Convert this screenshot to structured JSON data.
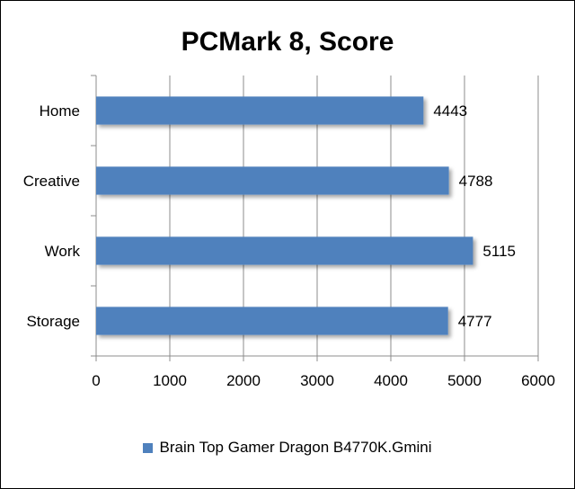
{
  "chart_data": {
    "type": "bar",
    "orientation": "horizontal",
    "title": "PCMark 8, Score",
    "categories": [
      "Home",
      "Creative",
      "Work",
      "Storage"
    ],
    "series": [
      {
        "name": "Brain Top Gamer Dragon B4770K.Gmini",
        "values": [
          4443,
          4788,
          5115,
          4777
        ]
      }
    ],
    "data_labels": [
      "4443",
      "4788",
      "5115",
      "4777"
    ],
    "xlim": [
      0,
      6000
    ],
    "x_ticks": [
      0,
      1000,
      2000,
      3000,
      4000,
      5000,
      6000
    ],
    "grid": true,
    "legend_position": "bottom",
    "bar_color": "#4F81BD"
  }
}
